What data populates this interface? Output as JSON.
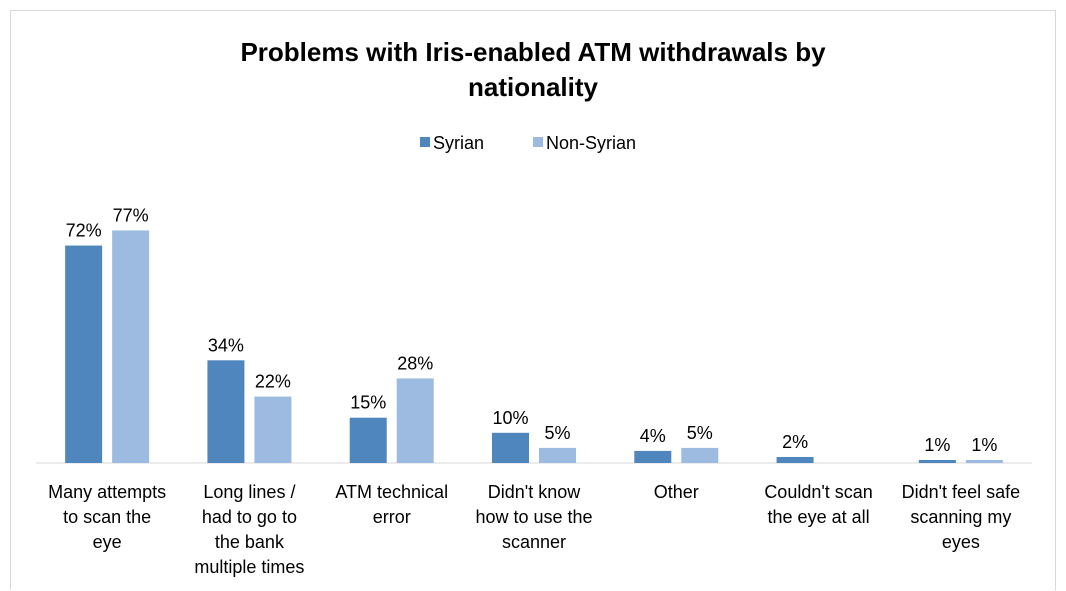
{
  "chart_data": {
    "type": "bar",
    "title_lines": [
      "Problems with Iris-enabled ATM withdrawals by",
      "nationality"
    ],
    "xlabel": "",
    "ylabel": "",
    "ylim": [
      0,
      90
    ],
    "grid": false,
    "legend": "top",
    "categories": [
      [
        "Many attempts",
        "to scan the",
        "eye"
      ],
      [
        "Long lines /",
        "had to go to",
        "the bank",
        "multiple times"
      ],
      [
        "ATM technical",
        "error"
      ],
      [
        "Didn't know",
        "how to use the",
        "scanner"
      ],
      [
        "Other"
      ],
      [
        "Couldn't scan",
        "the eye at all"
      ],
      [
        "Didn't feel safe",
        "scanning my",
        "eyes"
      ]
    ],
    "series": [
      {
        "name": "Syrian",
        "color": "#4f86be",
        "values": [
          72,
          34,
          15,
          10,
          4,
          2,
          1
        ],
        "labels": [
          "72%",
          "34%",
          "15%",
          "10%",
          "4%",
          "2%",
          "1%"
        ]
      },
      {
        "name": "Non-Syrian",
        "color": "#9dbbe0",
        "values": [
          77,
          22,
          28,
          5,
          5,
          0,
          1
        ],
        "labels": [
          "77%",
          "22%",
          "28%",
          "5%",
          "5%",
          "",
          "1%"
        ]
      }
    ]
  }
}
